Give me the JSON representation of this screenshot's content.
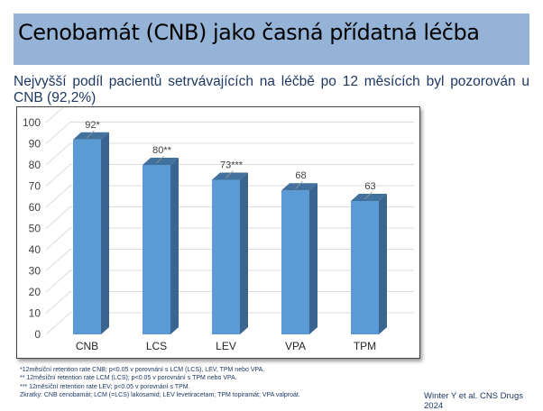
{
  "title": "Cenobamát (CNB) jako časná přídatná léčba",
  "subtitle": "Nejvyšší podíl pacientů setrvávajících na léčbě po 12 měsících byl pozorován u CNB (92,2%)",
  "chart_data": {
    "type": "bar",
    "categories": [
      "CNB",
      "LCS",
      "LEV",
      "VPA",
      "TPM"
    ],
    "values": [
      92,
      80,
      73,
      68,
      63
    ],
    "data_labels": [
      "92*",
      "80**",
      "73***",
      "68",
      "63"
    ],
    "ylim": [
      0,
      100
    ],
    "yticks": [
      0,
      10,
      20,
      30,
      40,
      50,
      60,
      70,
      80,
      90,
      100
    ],
    "grid": true,
    "title": "",
    "xlabel": "",
    "ylabel": "",
    "colors": {
      "front": "#5b9bd5",
      "side": "#3a6591",
      "top": "#41719c"
    }
  },
  "footnotes": [
    "*12měsíční retention rate CNB; p<0.05 v porovnání s LCM (LCS), LEV, TPM nebo VPA.",
    "** 12měsíční retention rate LCM (LCS); p<0.05 v porovnání s TPM  nebo VPA.",
    "*** 12měsíční retention rate LEV; p<0.05 v porovnání s TPM.",
    "Zkratky: CNB cenobamát; LCM (=LCS) lakosamid; LEV levetiracetam; TPM topiramát; VPA valproát."
  ],
  "citation": "Winter Y et al. CNS Drugs 2024"
}
